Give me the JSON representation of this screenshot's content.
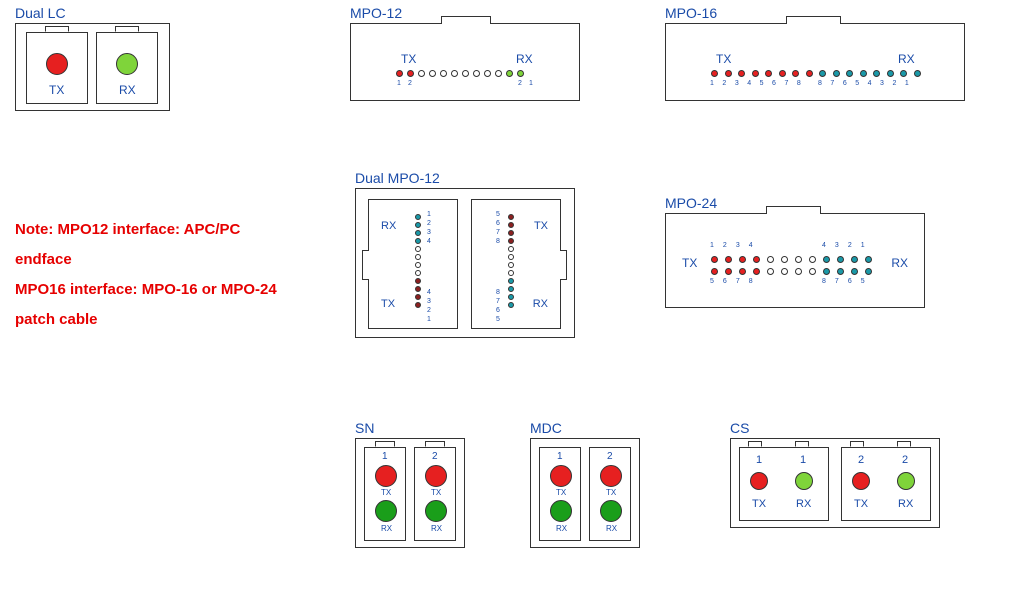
{
  "colors": {
    "red": "#e62020",
    "green": "#7fd43a",
    "darkgreen": "#1a9e1a",
    "teal": "#1a99a8",
    "darkred": "#8b2020",
    "white": "#ffffff",
    "title": "#1a4ba8",
    "note": "#e60000",
    "border": "#333333"
  },
  "fonts": {
    "title_size": 14,
    "label_size": 12,
    "small_label_size": 8,
    "tiny_num_size": 7,
    "note_size": 15
  },
  "dual_lc": {
    "title": "Dual LC",
    "tx": "TX",
    "rx": "RX",
    "tx_color": "#e62020",
    "rx_color": "#7fd43a"
  },
  "mpo12": {
    "title": "MPO-12",
    "tx": "TX",
    "rx": "RX",
    "n1": "1",
    "n2": "2",
    "pins": [
      {
        "c": "#e62020"
      },
      {
        "c": "#e62020"
      },
      {
        "c": "#ffffff"
      },
      {
        "c": "#ffffff"
      },
      {
        "c": "#ffffff"
      },
      {
        "c": "#ffffff"
      },
      {
        "c": "#ffffff"
      },
      {
        "c": "#ffffff"
      },
      {
        "c": "#ffffff"
      },
      {
        "c": "#ffffff"
      },
      {
        "c": "#7fd43a"
      },
      {
        "c": "#7fd43a"
      }
    ]
  },
  "mpo16": {
    "title": "MPO-16",
    "tx": "TX",
    "rx": "RX",
    "nums_left": [
      "1",
      "2",
      "3",
      "4",
      "5",
      "6",
      "7",
      "8"
    ],
    "nums_right": [
      "8",
      "7",
      "6",
      "5",
      "4",
      "3",
      "2",
      "1"
    ],
    "pins": [
      {
        "c": "#e62020"
      },
      {
        "c": "#e62020"
      },
      {
        "c": "#e62020"
      },
      {
        "c": "#e62020"
      },
      {
        "c": "#e62020"
      },
      {
        "c": "#e62020"
      },
      {
        "c": "#e62020"
      },
      {
        "c": "#e62020"
      },
      {
        "c": "#1a99a8"
      },
      {
        "c": "#1a99a8"
      },
      {
        "c": "#1a99a8"
      },
      {
        "c": "#1a99a8"
      },
      {
        "c": "#1a99a8"
      },
      {
        "c": "#1a99a8"
      },
      {
        "c": "#1a99a8"
      },
      {
        "c": "#1a99a8"
      }
    ]
  },
  "dual_mpo12": {
    "title": "Dual MPO-12",
    "tx": "TX",
    "rx": "RX",
    "left": {
      "top_nums": [
        "1",
        "2",
        "3",
        "4"
      ],
      "bot_nums": [
        "4",
        "3",
        "2",
        "1"
      ],
      "pins": [
        {
          "c": "#1a99a8"
        },
        {
          "c": "#1a99a8"
        },
        {
          "c": "#1a99a8"
        },
        {
          "c": "#1a99a8"
        },
        {
          "c": "#ffffff"
        },
        {
          "c": "#ffffff"
        },
        {
          "c": "#ffffff"
        },
        {
          "c": "#ffffff"
        },
        {
          "c": "#8b2020"
        },
        {
          "c": "#8b2020"
        },
        {
          "c": "#8b2020"
        },
        {
          "c": "#8b2020"
        }
      ]
    },
    "right": {
      "top_nums": [
        "5",
        "6",
        "7",
        "8"
      ],
      "bot_nums": [
        "8",
        "7",
        "6",
        "5"
      ],
      "pins": [
        {
          "c": "#8b2020"
        },
        {
          "c": "#8b2020"
        },
        {
          "c": "#8b2020"
        },
        {
          "c": "#8b2020"
        },
        {
          "c": "#ffffff"
        },
        {
          "c": "#ffffff"
        },
        {
          "c": "#ffffff"
        },
        {
          "c": "#ffffff"
        },
        {
          "c": "#1a99a8"
        },
        {
          "c": "#1a99a8"
        },
        {
          "c": "#1a99a8"
        },
        {
          "c": "#1a99a8"
        }
      ]
    }
  },
  "mpo24": {
    "title": "MPO-24",
    "tx": "TX",
    "rx": "RX",
    "top_nums_left": [
      "1",
      "2",
      "3",
      "4"
    ],
    "top_nums_right": [
      "4",
      "3",
      "2",
      "1"
    ],
    "bot_nums_left": [
      "5",
      "6",
      "7",
      "8"
    ],
    "bot_nums_right": [
      "8",
      "7",
      "6",
      "5"
    ],
    "row1": [
      {
        "c": "#e62020"
      },
      {
        "c": "#e62020"
      },
      {
        "c": "#e62020"
      },
      {
        "c": "#e62020"
      },
      {
        "c": "#ffffff"
      },
      {
        "c": "#ffffff"
      },
      {
        "c": "#ffffff"
      },
      {
        "c": "#ffffff"
      },
      {
        "c": "#1a99a8"
      },
      {
        "c": "#1a99a8"
      },
      {
        "c": "#1a99a8"
      },
      {
        "c": "#1a99a8"
      }
    ],
    "row2": [
      {
        "c": "#e62020"
      },
      {
        "c": "#e62020"
      },
      {
        "c": "#e62020"
      },
      {
        "c": "#e62020"
      },
      {
        "c": "#ffffff"
      },
      {
        "c": "#ffffff"
      },
      {
        "c": "#ffffff"
      },
      {
        "c": "#ffffff"
      },
      {
        "c": "#1a99a8"
      },
      {
        "c": "#1a99a8"
      },
      {
        "c": "#1a99a8"
      },
      {
        "c": "#1a99a8"
      }
    ]
  },
  "sn": {
    "title": "SN",
    "n1": "1",
    "n2": "2",
    "tx": "TX",
    "rx": "RX",
    "tx_color": "#e62020",
    "rx_color": "#1a9e1a"
  },
  "mdc": {
    "title": "MDC",
    "n1": "1",
    "n2": "2",
    "tx": "TX",
    "rx": "RX",
    "tx_color": "#e62020",
    "rx_color": "#1a9e1a"
  },
  "cs": {
    "title": "CS",
    "n1": "1",
    "n2": "2",
    "tx": "TX",
    "rx": "RX",
    "tx_color": "#e62020",
    "rx_color": "#7fd43a"
  },
  "note": {
    "line1": "Note: MPO12 interface: APC/PC",
    "line2": "endface",
    "line3": "MPO16 interface: MPO-16 or MPO-24",
    "line4": "patch cable"
  }
}
